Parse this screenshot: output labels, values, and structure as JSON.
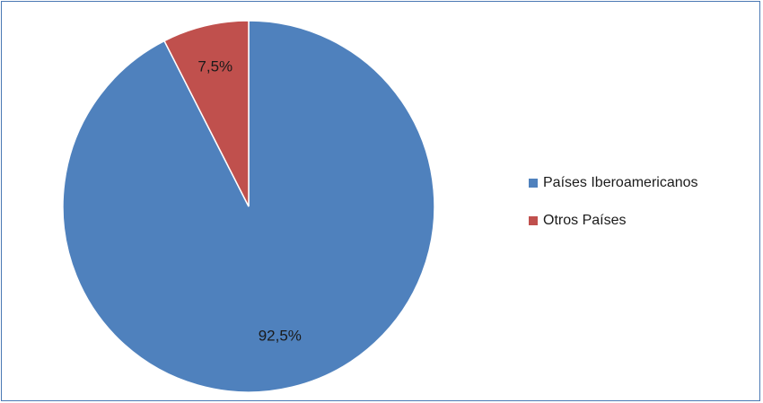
{
  "chart_data": {
    "type": "pie",
    "title": "",
    "start_angle_deg": 0,
    "direction": "clockwise",
    "slices": [
      {
        "name": "Países Iberoamericanos",
        "value": 92.5,
        "label": "92,5%",
        "color": "#4f81bd"
      },
      {
        "name": "Otros Países",
        "value": 7.5,
        "label": "7,5%",
        "color": "#c0504d"
      }
    ],
    "legend_position": "right"
  }
}
